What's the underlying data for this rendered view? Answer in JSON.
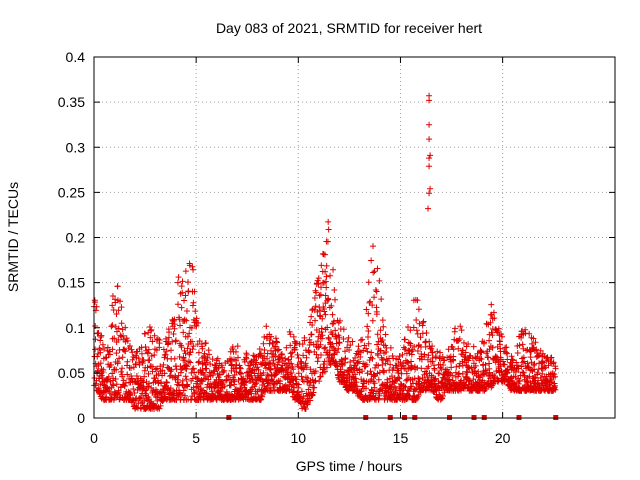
{
  "chart_data": {
    "type": "scatter",
    "title": "Day 083 of 2021, SRMTID for receiver hert",
    "xlabel": "GPS time / hours",
    "ylabel": "SRMTID / TECUs",
    "xlim": [
      0,
      25.5
    ],
    "ylim": [
      0,
      0.4
    ],
    "x_ticks": [
      0,
      5,
      10,
      15,
      20
    ],
    "x_tick_labels": [
      "0",
      "5",
      "10",
      "15",
      "20"
    ],
    "y_ticks": [
      0,
      0.05,
      0.1,
      0.15,
      0.2,
      0.25,
      0.3,
      0.35,
      0.4
    ],
    "y_tick_labels": [
      "0",
      "0.05",
      "0.1",
      "0.15",
      "0.2",
      "0.25",
      "0.3",
      "0.35",
      "0.4"
    ],
    "grid": true,
    "marker": "plus",
    "color": "#e00000",
    "baseline_markers_x": [
      6.6,
      13.3,
      14.5,
      15.2,
      15.7,
      17.4,
      18.6,
      19.1,
      20.8,
      22.6
    ],
    "envelope": {
      "x": [
        0.0,
        0.2,
        0.4,
        0.6,
        0.8,
        1.0,
        1.2,
        1.4,
        1.6,
        1.8,
        2.0,
        2.2,
        2.4,
        2.6,
        2.8,
        3.0,
        3.2,
        3.4,
        3.6,
        3.8,
        4.0,
        4.2,
        4.4,
        4.6,
        4.8,
        5.0,
        5.2,
        5.4,
        5.6,
        5.8,
        6.0,
        6.2,
        6.4,
        6.6,
        6.8,
        7.0,
        7.2,
        7.4,
        7.6,
        7.8,
        8.0,
        8.2,
        8.4,
        8.6,
        8.8,
        9.0,
        9.2,
        9.4,
        9.6,
        9.8,
        10.0,
        10.2,
        10.4,
        10.6,
        10.8,
        11.0,
        11.2,
        11.4,
        11.6,
        11.8,
        12.0,
        12.2,
        12.4,
        12.6,
        12.8,
        13.0,
        13.2,
        13.4,
        13.6,
        13.8,
        14.0,
        14.2,
        14.4,
        14.6,
        14.8,
        15.0,
        15.2,
        15.4,
        15.6,
        15.8,
        16.0,
        16.2,
        16.4,
        16.6,
        16.8,
        17.0,
        17.2,
        17.4,
        17.6,
        17.8,
        18.0,
        18.2,
        18.4,
        18.6,
        18.8,
        19.0,
        19.2,
        19.4,
        19.6,
        19.8,
        20.0,
        20.2,
        20.4,
        20.6,
        20.8,
        21.0,
        21.2,
        21.4,
        21.6,
        21.8,
        22.0,
        22.2,
        22.4,
        22.6
      ],
      "lo": [
        0.03,
        0.03,
        0.02,
        0.02,
        0.02,
        0.02,
        0.02,
        0.02,
        0.02,
        0.02,
        0.01,
        0.01,
        0.01,
        0.01,
        0.01,
        0.01,
        0.01,
        0.02,
        0.02,
        0.02,
        0.02,
        0.02,
        0.02,
        0.02,
        0.02,
        0.02,
        0.02,
        0.02,
        0.02,
        0.02,
        0.02,
        0.02,
        0.02,
        0.02,
        0.02,
        0.02,
        0.02,
        0.02,
        0.02,
        0.02,
        0.02,
        0.02,
        0.03,
        0.03,
        0.03,
        0.03,
        0.03,
        0.03,
        0.03,
        0.02,
        0.02,
        0.01,
        0.01,
        0.02,
        0.03,
        0.04,
        0.05,
        0.05,
        0.06,
        0.06,
        0.04,
        0.04,
        0.03,
        0.03,
        0.03,
        0.02,
        0.02,
        0.02,
        0.02,
        0.02,
        0.02,
        0.02,
        0.02,
        0.02,
        0.02,
        0.02,
        0.02,
        0.02,
        0.02,
        0.02,
        0.03,
        0.03,
        0.03,
        0.03,
        0.02,
        0.02,
        0.03,
        0.03,
        0.03,
        0.03,
        0.03,
        0.03,
        0.03,
        0.03,
        0.03,
        0.03,
        0.03,
        0.03,
        0.04,
        0.04,
        0.04,
        0.04,
        0.03,
        0.03,
        0.03,
        0.03,
        0.03,
        0.03,
        0.03,
        0.03,
        0.03,
        0.03,
        0.03,
        0.03
      ],
      "hi": [
        0.14,
        0.12,
        0.1,
        0.08,
        0.11,
        0.16,
        0.15,
        0.12,
        0.1,
        0.08,
        0.07,
        0.08,
        0.09,
        0.11,
        0.1,
        0.09,
        0.09,
        0.08,
        0.1,
        0.11,
        0.13,
        0.17,
        0.15,
        0.18,
        0.19,
        0.12,
        0.1,
        0.09,
        0.08,
        0.08,
        0.07,
        0.06,
        0.06,
        0.07,
        0.08,
        0.08,
        0.08,
        0.08,
        0.07,
        0.08,
        0.08,
        0.09,
        0.11,
        0.1,
        0.09,
        0.09,
        0.09,
        0.09,
        0.1,
        0.09,
        0.08,
        0.09,
        0.1,
        0.11,
        0.14,
        0.16,
        0.19,
        0.23,
        0.2,
        0.13,
        0.11,
        0.1,
        0.09,
        0.09,
        0.08,
        0.08,
        0.1,
        0.14,
        0.2,
        0.18,
        0.15,
        0.1,
        0.08,
        0.08,
        0.07,
        0.07,
        0.09,
        0.11,
        0.13,
        0.14,
        0.12,
        0.1,
        0.09,
        0.08,
        0.08,
        0.07,
        0.07,
        0.08,
        0.09,
        0.12,
        0.1,
        0.09,
        0.08,
        0.08,
        0.07,
        0.09,
        0.11,
        0.13,
        0.12,
        0.1,
        0.09,
        0.08,
        0.07,
        0.07,
        0.09,
        0.1,
        0.1,
        0.09,
        0.09,
        0.08,
        0.07,
        0.07,
        0.07,
        0.07
      ]
    },
    "outliers": [
      {
        "x": 16.4,
        "y": 0.357
      },
      {
        "x": 16.4,
        "y": 0.352
      },
      {
        "x": 16.4,
        "y": 0.325
      },
      {
        "x": 16.4,
        "y": 0.309
      },
      {
        "x": 16.45,
        "y": 0.291
      },
      {
        "x": 16.4,
        "y": 0.288
      },
      {
        "x": 16.4,
        "y": 0.279
      },
      {
        "x": 16.45,
        "y": 0.254
      },
      {
        "x": 16.4,
        "y": 0.249
      },
      {
        "x": 16.35,
        "y": 0.232
      }
    ]
  }
}
